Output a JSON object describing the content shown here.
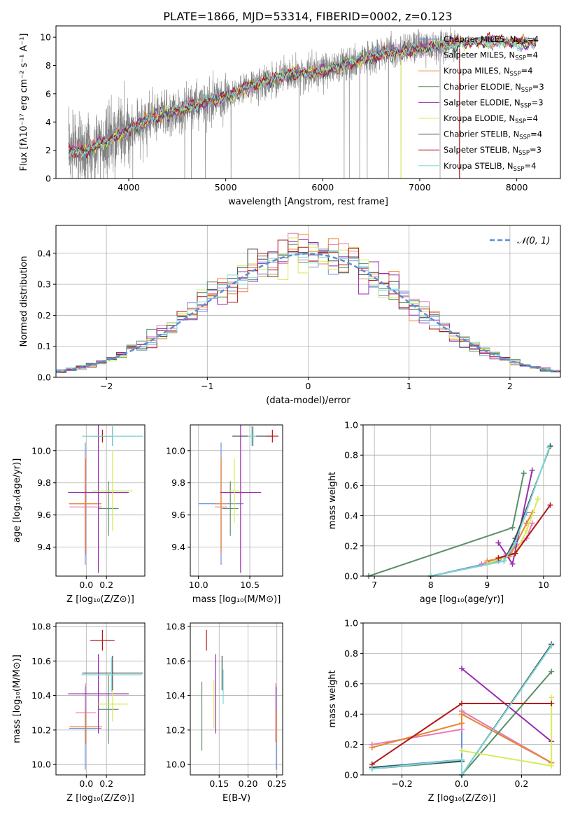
{
  "title": "PLATE=1866, MJD=53314, FIBERID=0002, z=0.123",
  "colors": {
    "gray_obs": "#808080",
    "grid": "#b0b0b0",
    "models": [
      "#6f8ee0",
      "#e87bb8",
      "#e6882f",
      "#5b8f66",
      "#9a2cb0",
      "#d7ec56",
      "#3d4e4e",
      "#b3171a",
      "#7fd8d8"
    ],
    "normal_curve": "#5b8cd6"
  },
  "legend_models": [
    {
      "sup": "Chabrier MILES, N",
      "sub": "SSP",
      "suffix": "=4"
    },
    {
      "sup": "Salpeter MILES, N",
      "sub": "SSP",
      "suffix": "=4"
    },
    {
      "sup": "Kroupa MILES, N",
      "sub": "SSP",
      "suffix": "=4"
    },
    {
      "sup": "Chabrier ELODIE, N",
      "sub": "SSP",
      "suffix": "=3"
    },
    {
      "sup": "Salpeter ELODIE, N",
      "sub": "SSP",
      "suffix": "=3"
    },
    {
      "sup": "Kroupa ELODIE, N",
      "sub": "SSP",
      "suffix": "=4"
    },
    {
      "sup": "Chabrier STELIB, N",
      "sub": "SSP",
      "suffix": "=4"
    },
    {
      "sup": "Salpeter STELIB, N",
      "sub": "SSP",
      "suffix": "=3"
    },
    {
      "sup": "Kroupa STELIB, N",
      "sub": "SSP",
      "suffix": "=4"
    }
  ],
  "chart_data": [
    {
      "id": "spectrum",
      "type": "line",
      "xlabel": "wavelength [Angstrom, rest frame]",
      "ylabel": "Flux [fλ10⁻¹⁷ erg cm⁻² s⁻¹ A⁻¹]",
      "xlim": [
        3250,
        8450
      ],
      "ylim": [
        0,
        10.8
      ],
      "xticks": [
        4000,
        5000,
        6000,
        7000,
        8000
      ],
      "yticks": [
        0,
        2,
        4,
        6,
        8,
        10
      ],
      "observed_wavelength_range": [
        3380,
        7400
      ],
      "model_wavelength_range": [
        3380,
        8200
      ],
      "continuum_knots": [
        [
          3380,
          2.1
        ],
        [
          3500,
          1.8
        ],
        [
          3700,
          2.5
        ],
        [
          4000,
          3.4
        ],
        [
          4300,
          4.5
        ],
        [
          4600,
          5.0
        ],
        [
          5000,
          5.8
        ],
        [
          5300,
          6.6
        ],
        [
          5600,
          7.3
        ],
        [
          6000,
          7.6
        ],
        [
          6300,
          8.2
        ],
        [
          6600,
          8.8
        ],
        [
          6900,
          9.1
        ],
        [
          7200,
          9.4
        ],
        [
          7500,
          9.6
        ],
        [
          7800,
          9.7
        ],
        [
          8200,
          9.6
        ]
      ]
    },
    {
      "id": "residuals",
      "type": "histogram",
      "xlabel": "(data-model)/error",
      "ylabel": "Normed distribution",
      "xlim": [
        -2.5,
        2.5
      ],
      "ylim": [
        0,
        0.49
      ],
      "xticks": [
        -2,
        -1,
        0,
        1,
        2
      ],
      "xtick_labels": [
        "−2",
        "−1",
        "0",
        "1",
        "2"
      ],
      "yticks": [
        0.0,
        0.1,
        0.2,
        0.3,
        0.4
      ],
      "legend": "𝒩(0, 1)",
      "bin_width": 0.1
    },
    {
      "id": "age_vs_Z",
      "type": "errorbar",
      "xlabel": "Z [log₁₀(Z/Z⊙)]",
      "ylabel": "age  [log₁₀(age/yr)]",
      "xlim": [
        -0.3,
        0.58
      ],
      "ylim": [
        9.22,
        10.16
      ],
      "xticks": [
        0.0,
        0.2
      ],
      "yticks": [
        9.4,
        9.6,
        9.8,
        10.0
      ],
      "points": [
        {
          "x": -0.01,
          "y": 9.67,
          "xerr": 0.16,
          "yerr": 0.38
        },
        {
          "x": -0.005,
          "y": 9.65,
          "xerr": 0.16,
          "yerr": 0.3
        },
        {
          "x": -0.01,
          "y": 9.67,
          "xerr": 0.16,
          "yerr": 0.3
        },
        {
          "x": 0.22,
          "y": 9.64,
          "xerr": 0.1,
          "yerr": 0.17
        },
        {
          "x": 0.12,
          "y": 9.74,
          "xerr": 0.3,
          "yerr": 0.5
        },
        {
          "x": 0.26,
          "y": 9.75,
          "xerr": 0.2,
          "yerr": 0.25
        },
        {
          "x": 0.26,
          "y": 10.09,
          "xerr": 0.3,
          "yerr": 0.06
        },
        {
          "x": 0.16,
          "y": 10.09,
          "xerr": 0.1,
          "yerr": 0.04
        },
        {
          "x": 0.26,
          "y": 10.09,
          "xerr": 0.3,
          "yerr": 0.06
        }
      ]
    },
    {
      "id": "age_vs_mass",
      "type": "errorbar",
      "xlabel": "mass [log₁₀(M/M⊙)]",
      "ylabel": "",
      "xlim": [
        9.92,
        10.82
      ],
      "ylim": [
        9.22,
        10.16
      ],
      "xticks": [
        10.0,
        10.5
      ],
      "yticks": [
        9.4,
        9.6,
        9.8,
        10.0
      ],
      "points": [
        {
          "x": 10.22,
          "y": 9.67,
          "xerr": 0.22,
          "yerr": 0.38
        },
        {
          "x": 10.22,
          "y": 9.65,
          "xerr": 0.06,
          "yerr": 0.3
        },
        {
          "x": 10.22,
          "y": 9.67,
          "xerr": 0.06,
          "yerr": 0.3
        },
        {
          "x": 10.31,
          "y": 9.64,
          "xerr": 0.08,
          "yerr": 0.17
        },
        {
          "x": 10.41,
          "y": 9.74,
          "xerr": 0.2,
          "yerr": 0.5
        },
        {
          "x": 10.35,
          "y": 9.75,
          "xerr": 0.05,
          "yerr": 0.2
        },
        {
          "x": 10.53,
          "y": 10.09,
          "xerr": 0.2,
          "yerr": 0.06
        },
        {
          "x": 10.72,
          "y": 10.09,
          "xerr": 0.06,
          "yerr": 0.04
        },
        {
          "x": 10.52,
          "y": 10.09,
          "xerr": 0.04,
          "yerr": 0.06
        }
      ]
    },
    {
      "id": "massweight_vs_age",
      "type": "line",
      "xlabel": "age  [log₁₀(age/yr)]",
      "ylabel": "mass weight",
      "xlim": [
        6.8,
        10.3
      ],
      "ylim": [
        0,
        1.0
      ],
      "xticks": [
        7,
        8,
        9,
        10
      ],
      "yticks": [
        0.0,
        0.2,
        0.4,
        0.6,
        0.8,
        1.0
      ],
      "series": [
        [
          [
            8.0,
            0.0
          ],
          [
            9.2,
            0.1
          ],
          [
            9.4,
            0.15
          ],
          [
            9.7,
            0.42
          ]
        ],
        [
          [
            8.9,
            0.08
          ],
          [
            9.3,
            0.13
          ],
          [
            9.7,
            0.25
          ],
          [
            9.8,
            0.35
          ]
        ],
        [
          [
            9.0,
            0.1
          ],
          [
            9.4,
            0.13
          ],
          [
            9.7,
            0.35
          ],
          [
            9.8,
            0.42
          ]
        ],
        [
          [
            6.9,
            0.0
          ],
          [
            9.45,
            0.32
          ],
          [
            9.65,
            0.68
          ]
        ],
        [
          [
            9.2,
            0.22
          ],
          [
            9.45,
            0.08
          ],
          [
            9.8,
            0.7
          ]
        ],
        [
          [
            9.0,
            0.08
          ],
          [
            9.5,
            0.15
          ],
          [
            9.7,
            0.3
          ],
          [
            9.9,
            0.51
          ]
        ],
        [
          [
            8.0,
            0.0
          ],
          [
            9.3,
            0.1
          ],
          [
            9.5,
            0.25
          ],
          [
            10.12,
            0.86
          ]
        ],
        [
          [
            9.2,
            0.12
          ],
          [
            9.5,
            0.15
          ],
          [
            10.12,
            0.47
          ]
        ],
        [
          [
            8.0,
            0.0
          ],
          [
            9.3,
            0.1
          ],
          [
            9.5,
            0.22
          ],
          [
            10.1,
            0.85
          ]
        ]
      ]
    },
    {
      "id": "mass_vs_Z",
      "type": "errorbar",
      "xlabel": "Z [log₁₀(Z/Z⊙)]",
      "ylabel": "mass [log₁₀(M/M⊙)]",
      "xlim": [
        -0.3,
        0.58
      ],
      "ylim": [
        9.94,
        10.82
      ],
      "xticks": [
        0.0,
        0.2
      ],
      "yticks": [
        10.0,
        10.2,
        10.4,
        10.6,
        10.8
      ],
      "points": [
        {
          "x": -0.01,
          "y": 10.21,
          "xerr": 0.16,
          "yerr": 0.24
        },
        {
          "x": -0.005,
          "y": 10.3,
          "xerr": 0.1,
          "yerr": 0.17
        },
        {
          "x": -0.005,
          "y": 10.22,
          "xerr": 0.16,
          "yerr": 0.1
        },
        {
          "x": 0.22,
          "y": 10.32,
          "xerr": 0.1,
          "yerr": 0.2
        },
        {
          "x": 0.12,
          "y": 10.41,
          "xerr": 0.3,
          "yerr": 0.23
        },
        {
          "x": 0.26,
          "y": 10.35,
          "xerr": 0.15,
          "yerr": 0.1
        },
        {
          "x": 0.26,
          "y": 10.53,
          "xerr": 0.3,
          "yerr": 0.1
        },
        {
          "x": 0.16,
          "y": 10.72,
          "xerr": 0.12,
          "yerr": 0.06
        },
        {
          "x": 0.25,
          "y": 10.52,
          "xerr": 0.3,
          "yerr": 0.1
        }
      ]
    },
    {
      "id": "ebv",
      "type": "errorbar",
      "xlabel": "E(B-V)",
      "ylabel": "",
      "xlim": [
        0.1,
        0.26
      ],
      "ylim": [
        9.94,
        10.82
      ],
      "xticks": [
        0.15,
        0.2,
        0.25
      ],
      "yticks": [
        10.0,
        10.2,
        10.4,
        10.6,
        10.8
      ],
      "points": [
        {
          "x": 0.249,
          "y": 10.21,
          "xerr": 0,
          "yerr": 0.24
        },
        {
          "x": 0.248,
          "y": 10.3,
          "xerr": 0,
          "yerr": 0.17
        },
        {
          "x": 0.249,
          "y": 10.22,
          "xerr": 0,
          "yerr": 0.1
        },
        {
          "x": 0.12,
          "y": 10.28,
          "xerr": 0,
          "yerr": 0.2
        },
        {
          "x": 0.144,
          "y": 10.41,
          "xerr": 0,
          "yerr": 0.23
        },
        {
          "x": 0.141,
          "y": 10.35,
          "xerr": 0,
          "yerr": 0.14
        },
        {
          "x": 0.155,
          "y": 10.53,
          "xerr": 0,
          "yerr": 0.1
        },
        {
          "x": 0.128,
          "y": 10.72,
          "xerr": 0,
          "yerr": 0.06
        },
        {
          "x": 0.157,
          "y": 10.45,
          "xerr": 0,
          "yerr": 0.1
        }
      ]
    },
    {
      "id": "massweight_vs_Z",
      "type": "line",
      "xlabel": "Z [log₁₀(Z/Z⊙)]",
      "ylabel": "mass weight",
      "xlim": [
        -0.33,
        0.33
      ],
      "ylim": [
        0,
        1.0
      ],
      "xticks": [
        -0.2,
        0.0,
        0.2
      ],
      "xtick_labels": [
        "−0.2",
        "0.0",
        "0.2"
      ],
      "yticks": [
        0.0,
        0.2,
        0.4,
        0.6,
        0.8,
        1.0
      ],
      "series": [
        [
          [
            -0.3,
            0.05
          ],
          [
            0.0,
            0.1
          ],
          [
            0.0,
            0.42
          ],
          [
            0.3,
            0.08
          ]
        ],
        [
          [
            -0.3,
            0.2
          ],
          [
            0.0,
            0.3
          ],
          [
            0.0,
            0.42
          ],
          [
            0.3,
            0.08
          ]
        ],
        [
          [
            -0.3,
            0.18
          ],
          [
            0.0,
            0.34
          ],
          [
            0.0,
            0.4
          ],
          [
            0.3,
            0.08
          ]
        ],
        [
          [
            -0.3,
            0.04
          ],
          [
            0.0,
            0.09
          ],
          [
            0.0,
            0.0
          ],
          [
            0.3,
            0.68
          ]
        ],
        [
          [
            0.0,
            0.7
          ],
          [
            0.3,
            0.22
          ]
        ],
        [
          [
            0.0,
            0.16
          ],
          [
            0.3,
            0.06
          ],
          [
            0.3,
            0.51
          ]
        ],
        [
          [
            -0.3,
            0.05
          ],
          [
            0.0,
            0.09
          ],
          [
            0.0,
            0.0
          ],
          [
            0.3,
            0.86
          ]
        ],
        [
          [
            -0.3,
            0.07
          ],
          [
            0.0,
            0.47
          ],
          [
            0.3,
            0.47
          ]
        ],
        [
          [
            -0.3,
            0.04
          ],
          [
            0.0,
            0.1
          ],
          [
            0.0,
            0.0
          ],
          [
            0.3,
            0.85
          ]
        ]
      ]
    }
  ]
}
